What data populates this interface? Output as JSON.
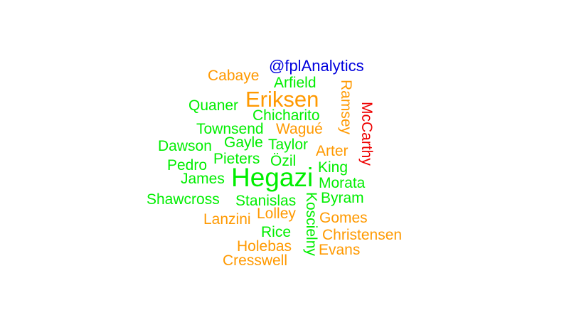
{
  "colors": {
    "orange": "#ff9900",
    "green": "#00ee00",
    "red": "#ee0000",
    "blue": "#0000dd"
  },
  "words": {
    "handle": "@fplAnalytics",
    "cabaye": "Cabaye",
    "arfield": "Arfield",
    "quaner": "Quaner",
    "eriksen": "Eriksen",
    "ramsey": "Ramsey",
    "mccarthy": "McCarthy",
    "chicharito": "Chicharito",
    "townsend": "Townsend",
    "wague": "Wagué",
    "dawson": "Dawson",
    "gayle": "Gayle",
    "taylor": "Taylor",
    "arter": "Arter",
    "pedro": "Pedro",
    "pieters": "Pieters",
    "ozil": "Özil",
    "king": "King",
    "james": "James",
    "hegazi": "Hegazi",
    "morata": "Morata",
    "shawcross": "Shawcross",
    "stanislas": "Stanislas",
    "byram": "Byram",
    "koscielny": "Koscielny",
    "lanzini": "Lanzini",
    "lolley": "Lolley",
    "gomes": "Gomes",
    "rice": "Rice",
    "christensen": "Christensen",
    "holebas": "Holebas",
    "evans": "Evans",
    "cresswell": "Cresswell"
  }
}
